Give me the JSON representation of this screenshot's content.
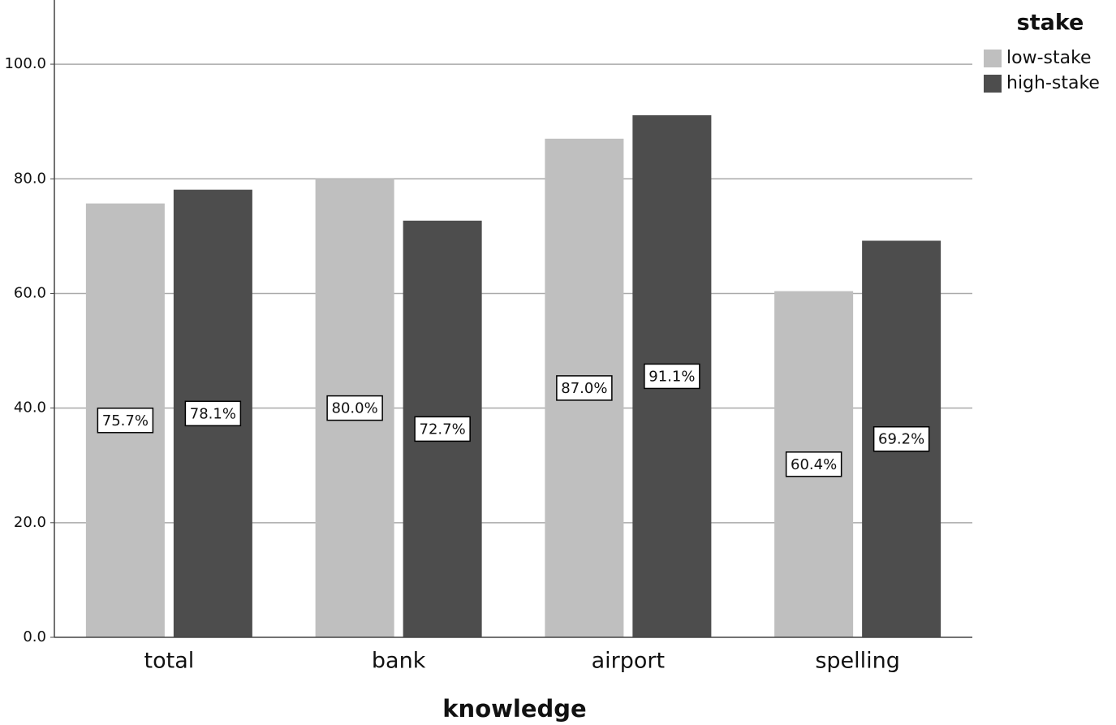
{
  "chart_data": {
    "type": "bar",
    "x_label": "knowledge",
    "legend_title": "stake",
    "legend": "right",
    "categories": [
      "total",
      "bank",
      "airport",
      "spelling"
    ],
    "series": [
      {
        "name": "low-stake",
        "color": "#bfbfbf",
        "values": [
          75.7,
          80.0,
          87.0,
          60.4
        ],
        "value_labels": [
          "75.7%",
          "80.0%",
          "87.0%",
          "60.4%"
        ]
      },
      {
        "name": "high-stake",
        "color": "#4d4d4d",
        "values": [
          78.1,
          72.7,
          91.1,
          69.2
        ],
        "value_labels": [
          "78.1%",
          "72.7%",
          "91.1%",
          "69.2%"
        ]
      }
    ],
    "ylim": [
      0,
      111.2
    ],
    "yticks": [
      {
        "value": 0,
        "label": "0.0"
      },
      {
        "value": 20,
        "label": "20.0"
      },
      {
        "value": 40,
        "label": "40.0"
      },
      {
        "value": 60,
        "label": "60.0"
      },
      {
        "value": 80,
        "label": "80.0"
      },
      {
        "value": 100,
        "label": "100.0"
      }
    ],
    "grid": true
  }
}
